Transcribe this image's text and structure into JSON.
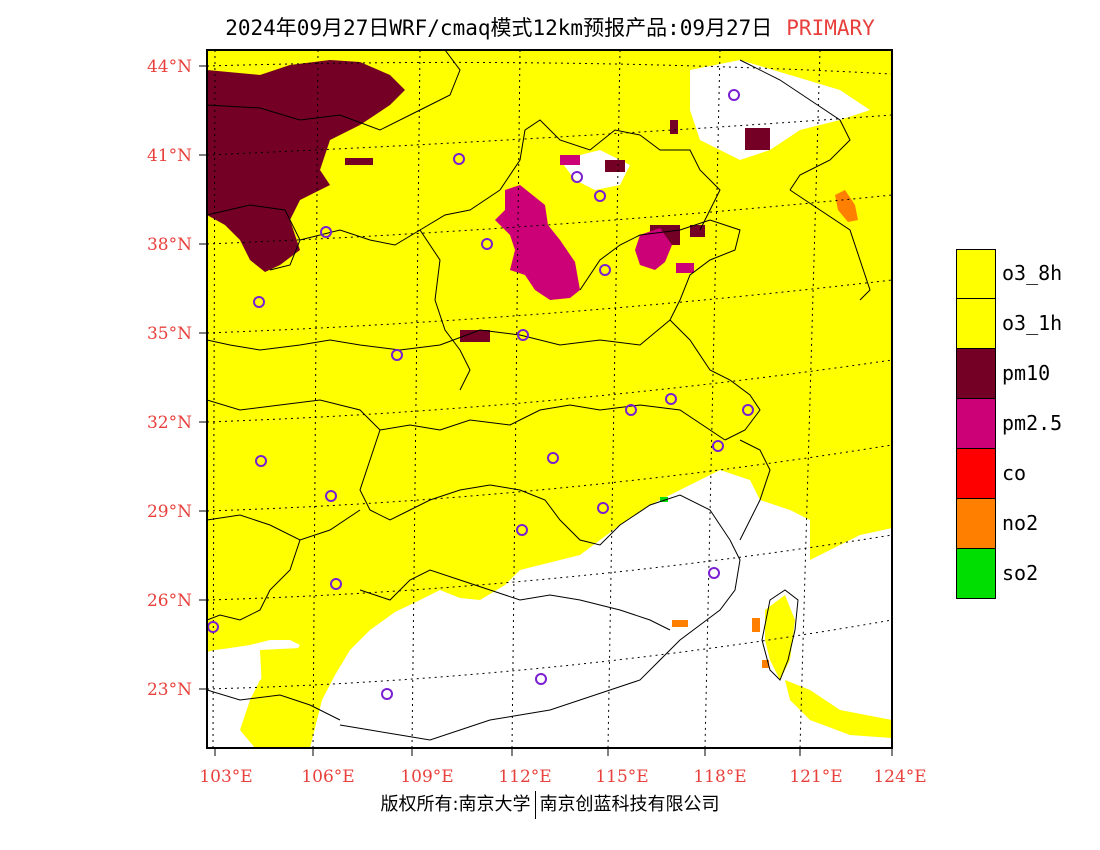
{
  "title": {
    "main": "2024年09月27日WRF/cmaq模式12km预报产品:09月27日",
    "tag": "PRIMARY"
  },
  "map": {
    "lat_labels": [
      "44°N",
      "41°N",
      "38°N",
      "35°N",
      "32°N",
      "29°N",
      "26°N",
      "23°N"
    ],
    "lon_labels": [
      "103°E",
      "106°E",
      "109°E",
      "112°E",
      "115°E",
      "118°E",
      "121°E",
      "124°E"
    ]
  },
  "legend": {
    "items": [
      {
        "label": "o3_8h",
        "color": "#ffff00"
      },
      {
        "label": "o3_1h",
        "color": "#ffff00"
      },
      {
        "label": "pm10",
        "color": "#750026"
      },
      {
        "label": "pm2.5",
        "color": "#cc0077"
      },
      {
        "label": "co",
        "color": "#ff0000"
      },
      {
        "label": "no2",
        "color": "#ff7f00"
      },
      {
        "label": "so2",
        "color": "#00dd00"
      }
    ]
  },
  "footer": {
    "left": "版权所有:南京大学",
    "right": "南京创蓝科技有限公司"
  },
  "colors": {
    "o3": "#ffff00",
    "pm10": "#750026",
    "pm25": "#cc0077",
    "no2": "#ff7f00",
    "so2": "#00dd00",
    "station": "#7a1fd1",
    "label_red": "#e8413d"
  }
}
